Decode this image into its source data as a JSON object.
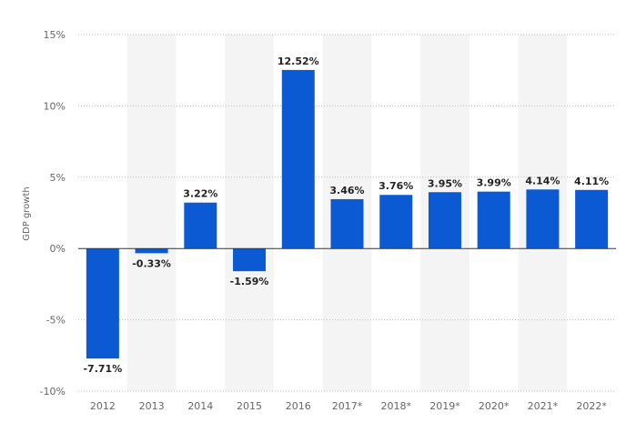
{
  "chart_data": {
    "type": "bar",
    "categories": [
      "2012",
      "2013",
      "2014",
      "2015",
      "2016",
      "2017*",
      "2018*",
      "2019*",
      "2020*",
      "2021*",
      "2022*"
    ],
    "values": [
      -7.71,
      -0.33,
      3.22,
      -1.59,
      12.52,
      3.46,
      3.76,
      3.95,
      3.99,
      4.14,
      4.11
    ],
    "value_labels": [
      "-7.71%",
      "-0.33%",
      "3.22%",
      "-1.59%",
      "12.52%",
      "3.46%",
      "3.76%",
      "3.95%",
      "3.99%",
      "4.14%",
      "4.11%"
    ],
    "title": "",
    "xlabel": "",
    "ylabel": "GDP growth",
    "ylim": [
      -10,
      15
    ],
    "yticks": [
      15,
      10,
      5,
      0,
      -5,
      -10
    ],
    "ytick_labels": [
      "15%",
      "10%",
      "5%",
      "0%",
      "-5%",
      "-10%"
    ],
    "grid": true,
    "legend": "none",
    "colors": {
      "bar": "#0b5ad4",
      "band": "#f4f4f4",
      "grid": "#bcbcbc",
      "zero_line": "#333333"
    }
  }
}
